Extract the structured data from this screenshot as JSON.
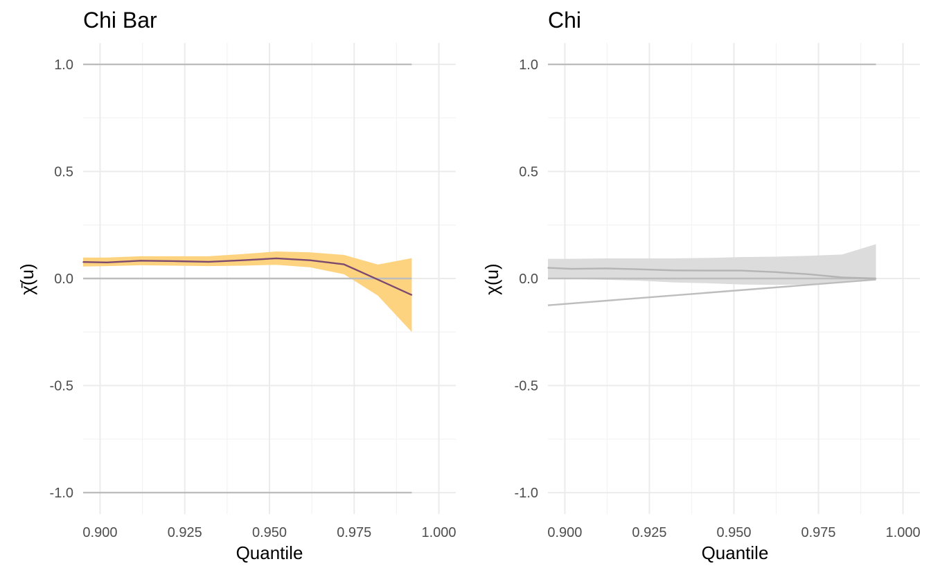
{
  "chart_data": [
    {
      "type": "line",
      "title": "Chi Bar",
      "xlabel": "Quantile",
      "ylabel": "χ̄(u)",
      "xlim": [
        0.895,
        1.005
      ],
      "ylim": [
        -1.1,
        1.1
      ],
      "x_ticks": [
        "0.900",
        "0.925",
        "0.950",
        "0.975",
        "1.000"
      ],
      "y_ticks": [
        "1.0",
        "0.5",
        "0.0",
        "-0.5",
        "-1.0"
      ],
      "grid": true,
      "colors": {
        "band": "#fed380",
        "line": "#7c4a6f",
        "reference": "#bdbdbd"
      },
      "reference_lines": [
        {
          "x": [
            0.895,
            0.992
          ],
          "y": [
            1.0,
            1.0
          ]
        },
        {
          "x": [
            0.895,
            0.992
          ],
          "y": [
            0.0,
            0.0
          ]
        },
        {
          "x": [
            0.895,
            0.992
          ],
          "y": [
            -1.0,
            -1.0
          ]
        }
      ],
      "band": {
        "x": [
          0.895,
          0.902,
          0.912,
          0.922,
          0.932,
          0.942,
          0.952,
          0.962,
          0.972,
          0.982,
          0.992
        ],
        "lower": [
          0.056,
          0.058,
          0.062,
          0.06,
          0.058,
          0.06,
          0.064,
          0.052,
          0.02,
          -0.08,
          -0.25
        ],
        "upper": [
          0.098,
          0.098,
          0.104,
          0.104,
          0.104,
          0.114,
          0.126,
          0.122,
          0.11,
          0.065,
          0.095
        ]
      },
      "series": [
        {
          "x": [
            0.895,
            0.902,
            0.912,
            0.922,
            0.932,
            0.942,
            0.952,
            0.962,
            0.972,
            0.982,
            0.992
          ],
          "values": [
            0.077,
            0.075,
            0.083,
            0.081,
            0.078,
            0.085,
            0.094,
            0.085,
            0.066,
            -0.005,
            -0.077
          ]
        }
      ]
    },
    {
      "type": "line",
      "title": "Chi",
      "xlabel": "Quantile",
      "ylabel": "χ(u)",
      "xlim": [
        0.895,
        1.005
      ],
      "ylim": [
        -1.1,
        1.1
      ],
      "x_ticks": [
        "0.900",
        "0.925",
        "0.950",
        "0.975",
        "1.000"
      ],
      "y_ticks": [
        "1.0",
        "0.5",
        "0.0",
        "-0.5",
        "-1.0"
      ],
      "grid": true,
      "colors": {
        "band": "#dcdcdc",
        "line": "#b4b4b4",
        "reference": "#bdbdbd"
      },
      "reference_lines": [
        {
          "x": [
            0.895,
            0.992
          ],
          "y": [
            1.0,
            1.0
          ]
        },
        {
          "x": [
            0.895,
            0.992
          ],
          "y": [
            0.0,
            0.0
          ]
        },
        {
          "x": [
            0.895,
            0.992
          ],
          "y": [
            -0.125,
            -0.005
          ]
        }
      ],
      "band": {
        "x": [
          0.895,
          0.902,
          0.912,
          0.922,
          0.932,
          0.942,
          0.952,
          0.962,
          0.972,
          0.982,
          0.992
        ],
        "lower": [
          0.0,
          -0.002,
          -0.006,
          -0.01,
          -0.018,
          -0.022,
          -0.028,
          -0.03,
          -0.028,
          -0.018,
          -0.005
        ],
        "upper": [
          0.092,
          0.092,
          0.094,
          0.094,
          0.094,
          0.096,
          0.1,
          0.102,
          0.106,
          0.112,
          0.16
        ]
      },
      "series": [
        {
          "x": [
            0.895,
            0.902,
            0.912,
            0.922,
            0.932,
            0.942,
            0.952,
            0.962,
            0.972,
            0.982,
            0.992
          ],
          "values": [
            0.05,
            0.045,
            0.047,
            0.043,
            0.038,
            0.037,
            0.037,
            0.03,
            0.02,
            0.005,
            0.0
          ]
        }
      ]
    }
  ]
}
